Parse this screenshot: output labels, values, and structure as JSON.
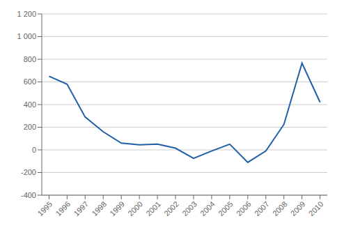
{
  "chart_data": {
    "type": "line",
    "x": [
      1995,
      1996,
      1997,
      1998,
      1999,
      2000,
      2001,
      2002,
      2003,
      2004,
      2005,
      2006,
      2007,
      2008,
      2009,
      2010
    ],
    "values": [
      650,
      580,
      290,
      160,
      60,
      45,
      50,
      15,
      -75,
      -10,
      50,
      -110,
      -10,
      225,
      765,
      420
    ],
    "color": "#1f5fa6",
    "xlim": [
      1994.6,
      2010.4
    ],
    "xticks": [
      1995,
      1996,
      1997,
      1998,
      1999,
      2000,
      2001,
      2002,
      2003,
      2004,
      2005,
      2006,
      2007,
      2008,
      2009,
      2010
    ],
    "ylim": [
      -400,
      1200
    ],
    "yticks": [
      -400,
      -200,
      0,
      200,
      400,
      600,
      800,
      {
        "value": 1000,
        "label": "1 000"
      },
      {
        "value": 1200,
        "label": "1 200"
      }
    ],
    "grid": "y"
  }
}
